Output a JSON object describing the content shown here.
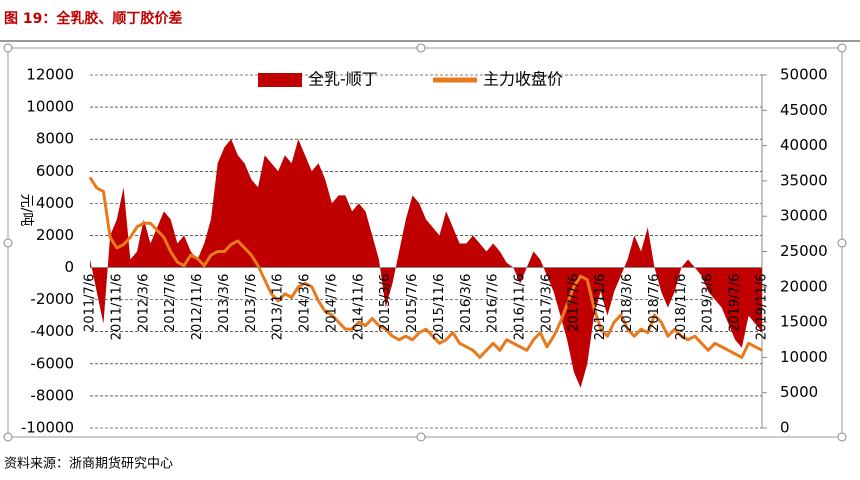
{
  "header": {
    "title": "图 19：全乳胶、顺丁胶价差"
  },
  "footer": {
    "source": "资料来源：浙商期货研究中心"
  },
  "chart_data": {
    "type": "area-line",
    "ylabel": "元/吨",
    "categories": [
      "2011/7/6",
      null,
      null,
      null,
      "2011/11/6",
      null,
      null,
      null,
      "2012/3/6",
      null,
      null,
      null,
      "2012/7/6",
      null,
      null,
      null,
      "2012/11/6",
      null,
      null,
      null,
      "2013/3/6",
      null,
      null,
      null,
      "2013/7/6",
      null,
      null,
      null,
      "2013/11/6",
      null,
      null,
      null,
      "2014/3/6",
      null,
      null,
      null,
      "2014/7/6",
      null,
      null,
      null,
      "2014/11/6",
      null,
      null,
      null,
      "2015/3/6",
      null,
      null,
      null,
      "2015/7/6",
      null,
      null,
      null,
      "2015/11/6",
      null,
      null,
      null,
      "2016/3/6",
      null,
      null,
      null,
      "2016/7/6",
      null,
      null,
      null,
      "2016/11/6",
      null,
      null,
      null,
      "2017/3/6",
      null,
      null,
      null,
      "2017/7/6",
      null,
      null,
      null,
      "2017/11/6",
      null,
      null,
      null,
      "2018/3/6",
      null,
      null,
      null,
      "2018/7/6",
      null,
      null,
      null,
      "2018/11/6",
      null,
      null,
      null,
      "2019/3/6",
      null,
      null,
      null,
      "2019/7/6",
      null,
      null,
      null,
      "2019/11/6"
    ],
    "series": [
      {
        "name": "全乳-顺丁",
        "color": "#c00000",
        "axis": "y",
        "values": [
          500,
          -1500,
          -3500,
          2000,
          3000,
          5000,
          500,
          1000,
          3000,
          1500,
          2500,
          3500,
          3000,
          1500,
          2000,
          1000,
          500,
          1500,
          3000,
          6500,
          7500,
          8000,
          7000,
          6500,
          5500,
          5000,
          7000,
          6500,
          6000,
          7000,
          6500,
          8000,
          7000,
          6000,
          6500,
          5500,
          4000,
          4500,
          4500,
          3500,
          4000,
          3500,
          2000,
          500,
          -2500,
          -1000,
          1000,
          3000,
          4500,
          4000,
          3000,
          2500,
          2000,
          3500,
          2500,
          1500,
          1500,
          2000,
          1500,
          1000,
          1500,
          1000,
          300,
          0,
          -1000,
          0,
          1000,
          500,
          -500,
          -1500,
          -3000,
          -4500,
          -6500,
          -7500,
          -6000,
          -3000,
          -1500,
          -3000,
          -1500,
          -500,
          500,
          2000,
          1000,
          2500,
          0,
          -1500,
          -2500,
          -1500,
          0,
          500,
          0,
          -500,
          -1500,
          -2000,
          -2500,
          -3500,
          -4500,
          -5000,
          -3000,
          -3500,
          -4000
        ]
      },
      {
        "name": "主力收盘价",
        "color": "#e8791c",
        "axis": "y2",
        "values": [
          35500,
          34000,
          33500,
          27000,
          25500,
          26000,
          27000,
          28500,
          29000,
          29000,
          28000,
          27000,
          25000,
          23500,
          23000,
          24500,
          24000,
          23000,
          24500,
          25000,
          25000,
          26000,
          26500,
          25500,
          24500,
          23000,
          21000,
          19000,
          18000,
          19000,
          18500,
          20000,
          20500,
          20000,
          18000,
          16500,
          16000,
          15000,
          14000,
          14000,
          15000,
          14500,
          15500,
          14500,
          14000,
          13000,
          12500,
          13000,
          12500,
          13500,
          14000,
          13000,
          12000,
          12500,
          13500,
          12000,
          11500,
          11000,
          10000,
          11000,
          12000,
          11000,
          12500,
          12000,
          11500,
          11000,
          12500,
          13500,
          11500,
          13000,
          15000,
          17500,
          20000,
          21500,
          21000,
          17000,
          14000,
          13000,
          15000,
          16000,
          14000,
          13000,
          14000,
          13500,
          16000,
          15000,
          13000,
          14000,
          13000,
          12500,
          13000,
          12000,
          11000,
          12000,
          11500,
          11000,
          10500,
          10000,
          12000,
          11500,
          11000
        ]
      }
    ],
    "ylim": [
      -10000,
      12000
    ],
    "yticks": [
      -10000,
      -8000,
      -6000,
      -4000,
      -2000,
      0,
      2000,
      4000,
      6000,
      8000,
      10000,
      12000
    ],
    "y2lim": [
      0,
      50000
    ],
    "y2ticks": [
      0,
      5000,
      10000,
      15000,
      20000,
      25000,
      30000,
      35000,
      40000,
      45000,
      50000
    ],
    "grid": true
  }
}
